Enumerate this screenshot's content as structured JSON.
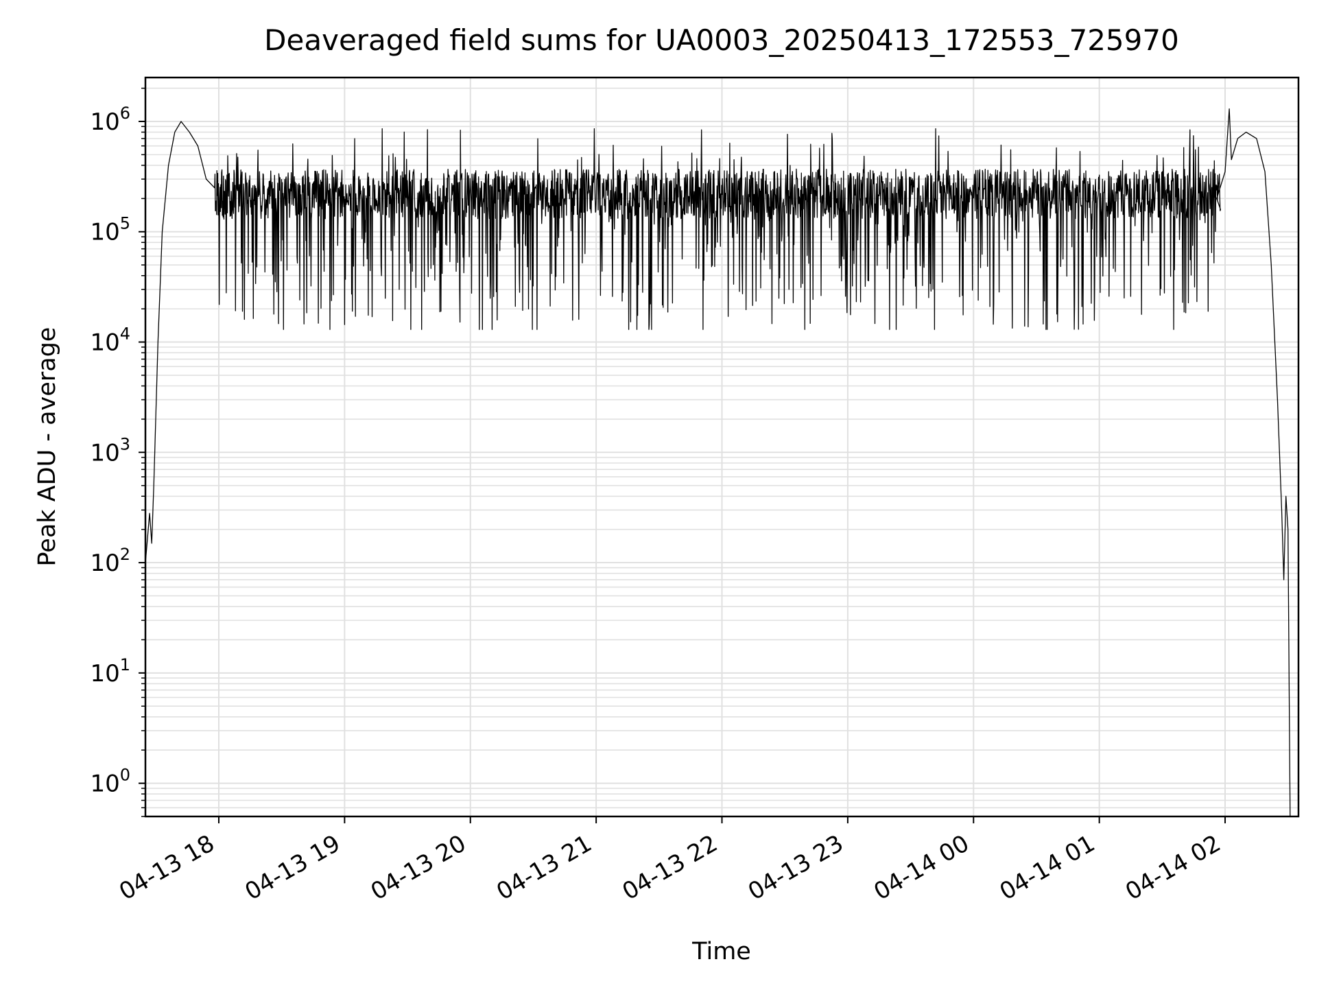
{
  "chart_data": {
    "type": "line",
    "title": "Deaveraged field sums for UA0003_20250413_172553_725970",
    "xlabel": "Time",
    "ylabel": "Peak ADU - average",
    "yscale": "log",
    "xlim": [
      "2025-04-13 17:25",
      "2025-04-14 02:35"
    ],
    "ylim": [
      0.5,
      2500000
    ],
    "grid": true,
    "line_color": "#000000",
    "grid_color": "#e0e0e0",
    "x_ticks": [
      {
        "value": "2025-04-13 18:00",
        "label": "04-13 18"
      },
      {
        "value": "2025-04-13 19:00",
        "label": "04-13 19"
      },
      {
        "value": "2025-04-13 20:00",
        "label": "04-13 20"
      },
      {
        "value": "2025-04-13 21:00",
        "label": "04-13 21"
      },
      {
        "value": "2025-04-13 22:00",
        "label": "04-13 22"
      },
      {
        "value": "2025-04-13 23:00",
        "label": "04-13 23"
      },
      {
        "value": "2025-04-14 00:00",
        "label": "04-14 00"
      },
      {
        "value": "2025-04-14 01:00",
        "label": "04-14 01"
      },
      {
        "value": "2025-04-14 02:00",
        "label": "04-14 02"
      }
    ],
    "y_ticks": [
      {
        "value": 1,
        "base": "10",
        "exp": "0"
      },
      {
        "value": 10,
        "base": "10",
        "exp": "1"
      },
      {
        "value": 100,
        "base": "10",
        "exp": "2"
      },
      {
        "value": 1000,
        "base": "10",
        "exp": "3"
      },
      {
        "value": 10000,
        "base": "10",
        "exp": "4"
      },
      {
        "value": 100000,
        "base": "10",
        "exp": "5"
      },
      {
        "value": 1000000,
        "base": "10",
        "exp": "6"
      }
    ],
    "series": [
      {
        "envelope": [
          [
            "2025-04-13 17:25",
            0.5
          ],
          [
            "2025-04-13 17:25",
            100
          ],
          [
            "2025-04-13 17:27",
            280
          ],
          [
            "2025-04-13 17:28",
            150
          ],
          [
            "2025-04-13 17:29",
            500
          ],
          [
            "2025-04-13 17:31",
            10000
          ],
          [
            "2025-04-13 17:33",
            100000
          ],
          [
            "2025-04-13 17:36",
            400000
          ],
          [
            "2025-04-13 17:39",
            800000
          ],
          [
            "2025-04-13 17:42",
            1000000
          ],
          [
            "2025-04-13 17:46",
            800000
          ],
          [
            "2025-04-13 17:50",
            600000
          ],
          [
            "2025-04-13 17:54",
            300000
          ],
          [
            "2025-04-13 17:58",
            250000
          ],
          [
            "2025-04-14 01:56",
            200000
          ],
          [
            "2025-04-14 02:00",
            350000
          ],
          [
            "2025-04-14 02:02",
            1300000
          ],
          [
            "2025-04-14 02:03",
            450000
          ],
          [
            "2025-04-14 02:06",
            700000
          ],
          [
            "2025-04-14 02:10",
            800000
          ],
          [
            "2025-04-14 02:15",
            700000
          ],
          [
            "2025-04-14 02:19",
            350000
          ],
          [
            "2025-04-14 02:22",
            50000
          ],
          [
            "2025-04-14 02:25",
            3000
          ],
          [
            "2025-04-14 02:27",
            300
          ],
          [
            "2025-04-14 02:28",
            70
          ],
          [
            "2025-04-14 02:29",
            400
          ],
          [
            "2025-04-14 02:30",
            200
          ],
          [
            "2025-04-14 02:31",
            0.5
          ]
        ],
        "noisy_segment": {
          "start": "2025-04-13 17:58",
          "end": "2025-04-14 01:58",
          "typical": 220000,
          "min": 13000,
          "max": 860000
        }
      }
    ]
  }
}
